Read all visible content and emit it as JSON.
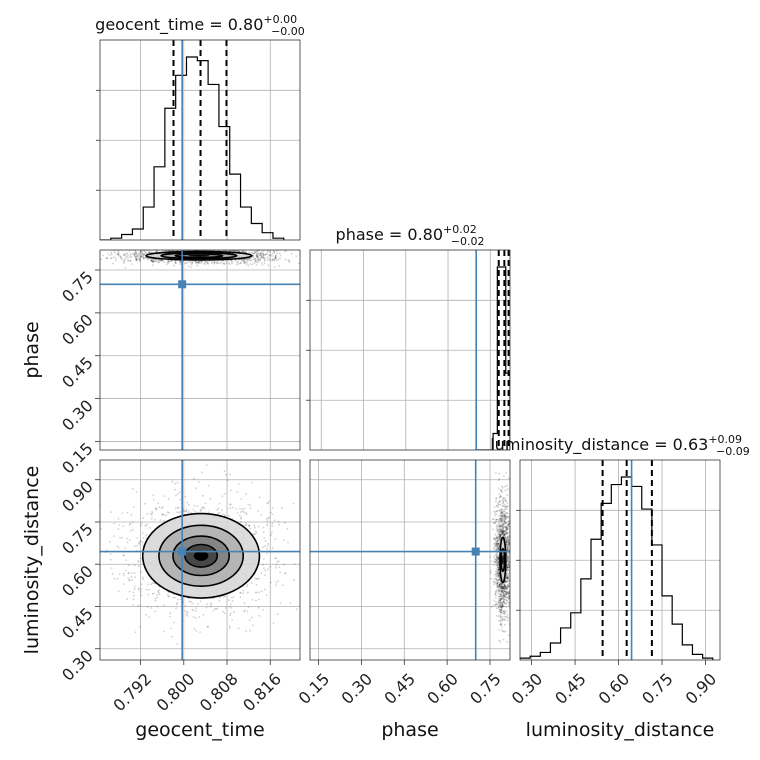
{
  "chart_data": {
    "type": "corner",
    "parameters": [
      "geocent_time",
      "phase",
      "luminosity_distance"
    ],
    "truths": {
      "geocent_time": 0.7997,
      "phase": 0.7,
      "luminosity_distance": 0.645
    },
    "colors": {
      "truth": "#4682b4",
      "hist": "#000000",
      "grid": "#b0b0b0"
    },
    "diagonal": [
      {
        "parameter": "geocent_time",
        "title_main": "geocent_time = 0.80",
        "title_sup": "+0.00",
        "title_sub": "−0.00",
        "xlim": [
          0.7845,
          0.8215
        ],
        "quantiles": [
          0.7981,
          0.8031,
          0.8079
        ],
        "bins": [
          0.7845,
          0.7865,
          0.7885,
          0.7905,
          0.7925,
          0.7945,
          0.7965,
          0.7985,
          0.8005,
          0.8025,
          0.8045,
          0.8065,
          0.8085,
          0.8105,
          0.8125,
          0.8145,
          0.8165,
          0.8185
        ],
        "counts": [
          0,
          1,
          3,
          6,
          18,
          40,
          72,
          90,
          100,
          98,
          85,
          62,
          36,
          18,
          9,
          4,
          1
        ]
      },
      {
        "parameter": "phase",
        "title_main": "phase = 0.80",
        "title_sup": "+0.02",
        "title_sub": "−0.02",
        "xlim": [
          0.11,
          0.82
        ],
        "quantiles": [
          0.78,
          0.8,
          0.815
        ],
        "bins": [
          0.7,
          0.72,
          0.74,
          0.76,
          0.775,
          0.79,
          0.805,
          0.82
        ],
        "counts": [
          0,
          0,
          0,
          9,
          100,
          100,
          42
        ]
      },
      {
        "parameter": "luminosity_distance",
        "title_main": "luminosity_distance = 0.63",
        "title_sup": "+0.09",
        "title_sub": "−0.09",
        "xlim": [
          0.26,
          0.95
        ],
        "quantiles": [
          0.545,
          0.628,
          0.715
        ],
        "bins": [
          0.26,
          0.295,
          0.33,
          0.365,
          0.4,
          0.435,
          0.47,
          0.505,
          0.54,
          0.575,
          0.61,
          0.645,
          0.68,
          0.715,
          0.75,
          0.785,
          0.82,
          0.855,
          0.89,
          0.925
        ],
        "counts": [
          1,
          2,
          4,
          9,
          17,
          25,
          43,
          64,
          83,
          93,
          97,
          92,
          80,
          61,
          34,
          19,
          8,
          3,
          1
        ]
      }
    ],
    "ranges": {
      "geocent_time": [
        0.7845,
        0.8215
      ],
      "phase": [
        0.12,
        0.82
      ],
      "luminosity_distance": [
        0.26,
        0.97
      ]
    },
    "axes": {
      "geocent_time": {
        "label": "geocent_time",
        "ticks": [
          0.792,
          0.8,
          0.808,
          0.816
        ],
        "tick_labels": [
          "0.792",
          "0.800",
          "0.808",
          "0.816"
        ]
      },
      "phase": {
        "label": "phase",
        "ticks": [
          0.15,
          0.3,
          0.45,
          0.6,
          0.75
        ],
        "tick_labels": [
          "0.15",
          "0.30",
          "0.45",
          "0.60",
          "0.75"
        ]
      },
      "luminosity_distance": {
        "label": "luminosity_distance",
        "ticks": [
          0.3,
          0.45,
          0.6,
          0.75,
          0.9
        ],
        "tick_labels": [
          "0.30",
          "0.45",
          "0.60",
          "0.75",
          "0.90"
        ]
      }
    },
    "pairs": [
      {
        "x": "geocent_time",
        "y": "phase",
        "center": [
          0.8028,
          0.8
        ],
        "spread": [
          0.006,
          0.012
        ],
        "contours": [
          [
            0.0044,
            0.006
          ],
          [
            0.007,
            0.01
          ],
          [
            0.0098,
            0.015
          ]
        ]
      },
      {
        "x": "geocent_time",
        "y": "luminosity_distance",
        "center": [
          0.8032,
          0.63
        ],
        "spread": [
          0.006,
          0.088
        ],
        "contours": [
          [
            0.003,
            0.04
          ],
          [
            0.0052,
            0.07
          ],
          [
            0.0078,
            0.108
          ],
          [
            0.0108,
            0.15
          ]
        ]
      },
      {
        "x": "phase",
        "y": "luminosity_distance",
        "center": [
          0.795,
          0.615
        ],
        "spread": [
          0.012,
          0.09
        ],
        "contours": [
          [
            0.006,
            0.04
          ],
          [
            0.01,
            0.08
          ]
        ]
      }
    ]
  }
}
